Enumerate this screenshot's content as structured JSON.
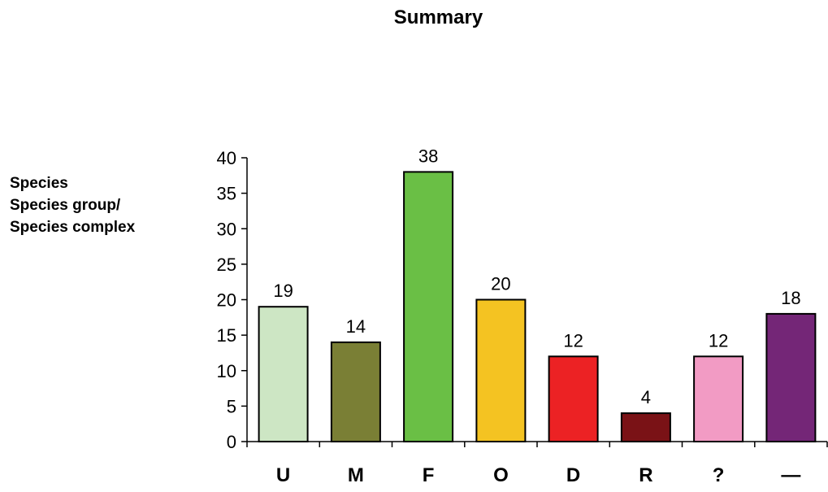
{
  "chart_data": {
    "type": "bar",
    "title": "Summary",
    "ylabel_lines": [
      "Species",
      "Species group/",
      "Species complex"
    ],
    "xlabel": "",
    "categories": [
      "U",
      "M",
      "F",
      "O",
      "D",
      "R",
      "?",
      "—"
    ],
    "values": [
      19,
      14,
      38,
      20,
      12,
      4,
      12,
      18
    ],
    "colors": [
      "#cde6c4",
      "#7a7f35",
      "#6abf45",
      "#f4c322",
      "#ec2224",
      "#7a1216",
      "#f29bc4",
      "#742677"
    ],
    "ylim": [
      0,
      40
    ],
    "yticks": [
      0,
      5,
      10,
      15,
      20,
      25,
      30,
      35,
      40
    ],
    "data_labels": true,
    "grid": false,
    "legend": "none"
  }
}
